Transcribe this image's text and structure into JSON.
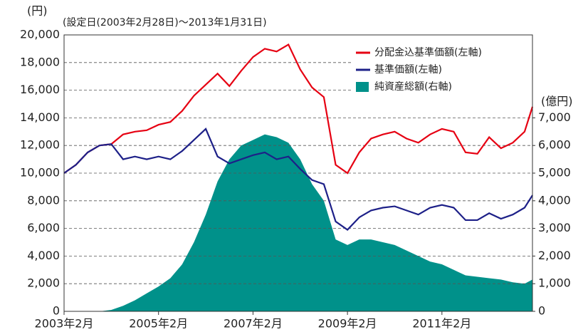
{
  "chart_data": {
    "type": "line",
    "subtitle": "(設定日(2003年2月28日)～2013年1月31日)",
    "y_label": "(円)",
    "y2_label": "(億円)",
    "x": [
      "2003-02",
      "2003-05",
      "2003-08",
      "2003-11",
      "2004-02",
      "2004-05",
      "2004-08",
      "2004-11",
      "2005-02",
      "2005-05",
      "2005-08",
      "2005-11",
      "2006-02",
      "2006-05",
      "2006-08",
      "2006-11",
      "2007-02",
      "2007-05",
      "2007-08",
      "2007-11",
      "2008-02",
      "2008-05",
      "2008-08",
      "2008-11",
      "2009-02",
      "2009-05",
      "2009-08",
      "2009-11",
      "2010-02",
      "2010-05",
      "2010-08",
      "2010-11",
      "2011-02",
      "2011-05",
      "2011-08",
      "2011-11",
      "2012-02",
      "2012-05",
      "2012-08",
      "2012-11",
      "2013-01"
    ],
    "series": [
      {
        "name": "分配金込基準価額(左軸)",
        "color": "#e60012",
        "type": "line",
        "values": [
          10000,
          10600,
          11500,
          12000,
          12100,
          12800,
          13000,
          13100,
          13500,
          13700,
          14500,
          15600,
          16400,
          17200,
          16300,
          17400,
          18400,
          19000,
          18800,
          19300,
          17500,
          16200,
          15500,
          10600,
          10000,
          11500,
          12500,
          12800,
          13000,
          12500,
          12200,
          12800,
          13200,
          13000,
          11500,
          11400,
          12600,
          11800,
          12200,
          13000,
          14800
        ]
      },
      {
        "name": "基準価額(左軸)",
        "color": "#1d2088",
        "type": "line",
        "values": [
          10000,
          10600,
          11500,
          12000,
          12100,
          11000,
          11200,
          11000,
          11200,
          11000,
          11600,
          12400,
          13200,
          11200,
          10700,
          11000,
          11300,
          11500,
          11000,
          11200,
          10300,
          9500,
          9200,
          6500,
          5900,
          6800,
          7300,
          7500,
          7600,
          7300,
          7000,
          7500,
          7700,
          7500,
          6600,
          6600,
          7100,
          6700,
          7000,
          7500,
          8400
        ]
      },
      {
        "name": "純資産総額(右軸)",
        "color": "#00918a",
        "type": "area",
        "axis": "y2",
        "values": [
          0,
          0,
          0,
          0,
          50,
          200,
          400,
          650,
          900,
          1200,
          1700,
          2500,
          3500,
          4700,
          5500,
          6000,
          6200,
          6400,
          6300,
          6100,
          5500,
          4600,
          4000,
          2600,
          2400,
          2600,
          2600,
          2500,
          2400,
          2200,
          2000,
          1800,
          1700,
          1500,
          1300,
          1250,
          1200,
          1150,
          1050,
          1000,
          1150
        ]
      }
    ],
    "xlim": [
      "2003-02",
      "2013-01"
    ],
    "xticks": [
      {
        "value": "2003-02",
        "label": "2003年2月"
      },
      {
        "value": "2005-02",
        "label": "2005年2月"
      },
      {
        "value": "2007-02",
        "label": "2007年2月"
      },
      {
        "value": "2009-02",
        "label": "2009年2月"
      },
      {
        "value": "2011-02",
        "label": "2011年2月"
      }
    ],
    "ylim": [
      0,
      20000
    ],
    "yticks": [
      0,
      {
        "value": 2000,
        "label": "2,000"
      },
      {
        "value": 4000,
        "label": "4,000"
      },
      {
        "value": 6000,
        "label": "6,000"
      },
      {
        "value": 8000,
        "label": "8,000"
      },
      {
        "value": 10000,
        "label": "10,000"
      },
      {
        "value": 12000,
        "label": "12,000"
      },
      {
        "value": 14000,
        "label": "14,000"
      },
      {
        "value": 16000,
        "label": "16,000"
      },
      {
        "value": 18000,
        "label": "18,000"
      },
      {
        "value": 20000,
        "label": "20,000"
      }
    ],
    "y2lim": [
      0,
      10000
    ],
    "y2ticks": [
      0,
      {
        "value": 1000,
        "label": "1,000"
      },
      {
        "value": 2000,
        "label": "2,000"
      },
      {
        "value": 3000,
        "label": "3,000"
      },
      {
        "value": 4000,
        "label": "4,000"
      },
      {
        "value": 5000,
        "label": "5,000"
      },
      {
        "value": 6000,
        "label": "6,000"
      },
      {
        "value": 7000,
        "label": "7,000"
      }
    ],
    "grid": true,
    "legend": "upper right"
  }
}
